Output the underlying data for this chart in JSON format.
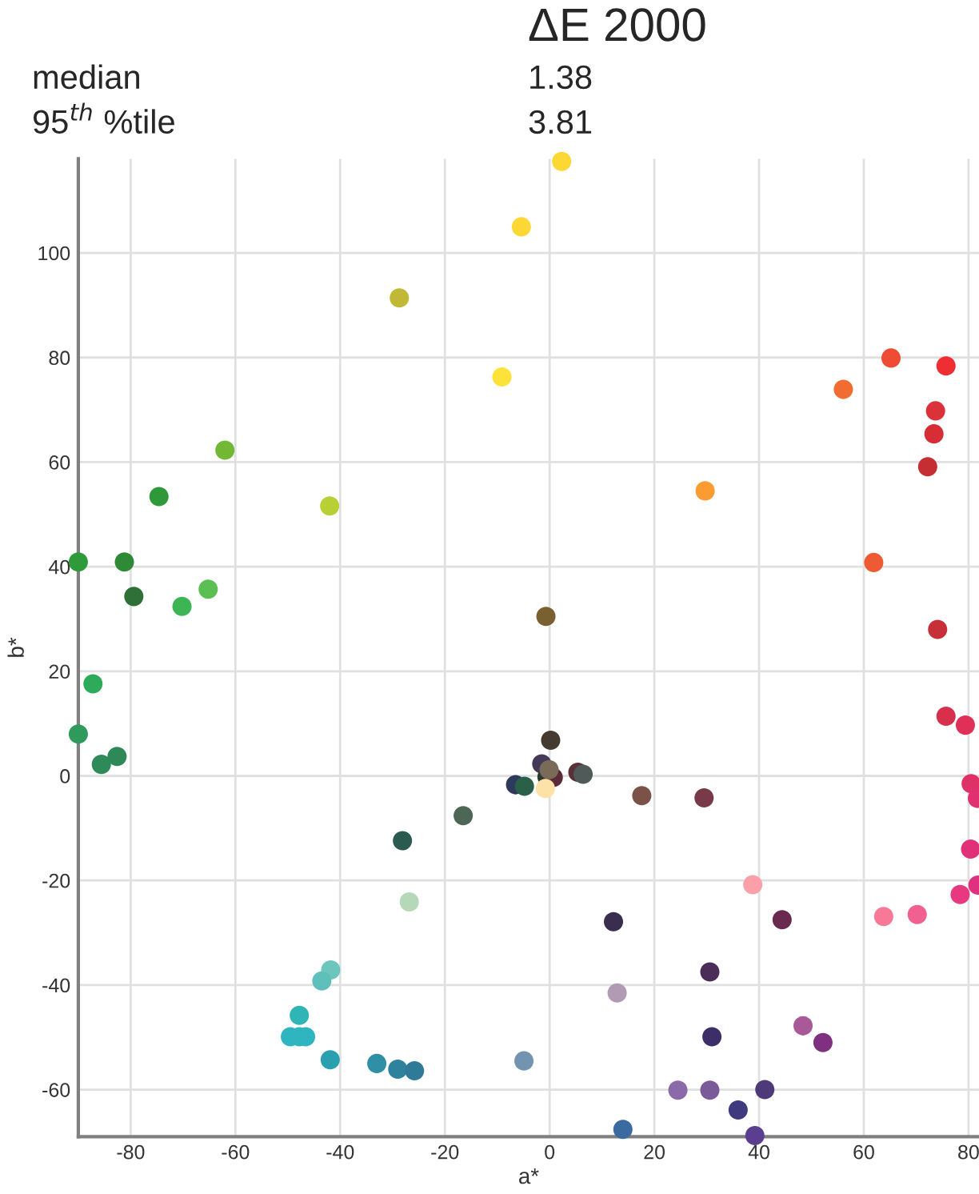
{
  "chart_data": {
    "type": "scatter",
    "title": "ΔE 2000",
    "xlabel": "a*",
    "ylabel": "b*",
    "annotations": [
      "median",
      "1.38",
      "95$^{th}$ %tile",
      "3.81"
    ],
    "x": [
      2.3,
      -5.4,
      -28.7,
      -9.1,
      -62,
      -74.6,
      -42,
      -90,
      -81.2,
      -79.4,
      -70.2,
      -65.2,
      -0.7,
      65.2,
      75.7,
      56.1,
      73.7,
      73.4,
      72.2,
      29.7,
      61.9,
      74.1,
      -87.2,
      -90,
      -85.6,
      -82.6,
      -16.5,
      -28.1,
      -26.8,
      -41.8,
      -43.5,
      -47.8,
      -49.5,
      -47.8,
      -46.6,
      -41.9,
      -33.0,
      -29.0,
      -25.8,
      -4.9,
      -6.5,
      -4.8,
      0.2,
      -1.5,
      -0.5,
      0.7,
      -0.1,
      -0.8,
      5.4,
      6.4,
      17.6,
      29.5,
      38.8,
      12.2,
      44.4,
      63.8,
      70.2,
      78.4,
      75.7,
      79.4,
      80.5,
      81.7,
      80.4,
      81.8,
      30.6,
      12.9,
      48.4,
      52.2,
      31.0,
      24.5,
      30.6,
      41.1,
      36.0,
      14.0,
      39.2
    ],
    "values": [
      117.5,
      105,
      91.4,
      76.3,
      62.3,
      53.4,
      51.6,
      40.9,
      40.9,
      34.3,
      32.4,
      35.7,
      30.5,
      79.9,
      78.4,
      73.9,
      69.8,
      65.4,
      59.1,
      54.5,
      40.8,
      28.0,
      17.6,
      8.0,
      2.2,
      3.7,
      -7.6,
      -12.4,
      -24.1,
      -37.1,
      -39.2,
      -45.8,
      -49.9,
      -49.9,
      -49.9,
      -54.3,
      -55.0,
      -56.1,
      -56.4,
      -54.5,
      -1.7,
      -2.0,
      6.8,
      2.3,
      -0.2,
      -0.3,
      1.2,
      -2.4,
      0.7,
      0.3,
      -3.8,
      -4.2,
      -20.8,
      -27.9,
      -27.5,
      -26.9,
      -26.5,
      -22.7,
      11.4,
      9.7,
      -1.5,
      -4.3,
      -14.0,
      -20.9,
      -37.5,
      -41.5,
      -47.8,
      -51.0,
      -49.9,
      -60.1,
      -60.1,
      -60.0,
      -63.9,
      -67.6,
      -68.8
    ],
    "colors": [
      "#fdd835",
      "#fdd835",
      "#c0b935",
      "#fde23a",
      "#73b835",
      "#2f9838",
      "#b8cf36",
      "#2e9a3a",
      "#2f8a38",
      "#2e7035",
      "#3cb555",
      "#5cbf54",
      "#7a5f30",
      "#ee4c34",
      "#ee2e33",
      "#f06c30",
      "#db3138",
      "#d72e35",
      "#c52f34",
      "#fb9c32",
      "#ee5a34",
      "#c73038",
      "#2eab5a",
      "#2e9a5c",
      "#2e8a58",
      "#2e8858",
      "#4d6656",
      "#2a5a50",
      "#b5d8b8",
      "#6cc6be",
      "#5fc0bb",
      "#2fb5b5",
      "#2fb5bf",
      "#2fb5bf",
      "#2fb5bf",
      "#2a9fb0",
      "#2e8fa5",
      "#2e829c",
      "#2f7a98",
      "#7294b0",
      "#2e3a5c",
      "#2a6048",
      "#443a30",
      "#443a58",
      "#2a3a30",
      "#5a2a38",
      "#7a6a58",
      "#fde2a8",
      "#5a3038",
      "#505a58",
      "#7a5248",
      "#783a48",
      "#fba0a8",
      "#3a2e50",
      "#6a2a50",
      "#f87898",
      "#f06090",
      "#e83880",
      "#d8304c",
      "#e03058",
      "#e03068",
      "#e03070",
      "#e03078",
      "#e03080",
      "#4a2e58",
      "#b39ab4",
      "#a85a98",
      "#803080",
      "#3e2e68",
      "#8a6aa8",
      "#7a5a98",
      "#4e3a78",
      "#3e3a7e",
      "#3a6aa0",
      "#5a3e90"
    ],
    "marker": "circle",
    "grid": true,
    "xlim": [
      -90,
      82
    ],
    "ylim": [
      -69,
      118
    ],
    "xticks": [
      -80,
      -60,
      -40,
      -20,
      0,
      20,
      40,
      60,
      80
    ],
    "yticks": [
      -60,
      -40,
      -20,
      0,
      20,
      40,
      60,
      80,
      100
    ]
  }
}
